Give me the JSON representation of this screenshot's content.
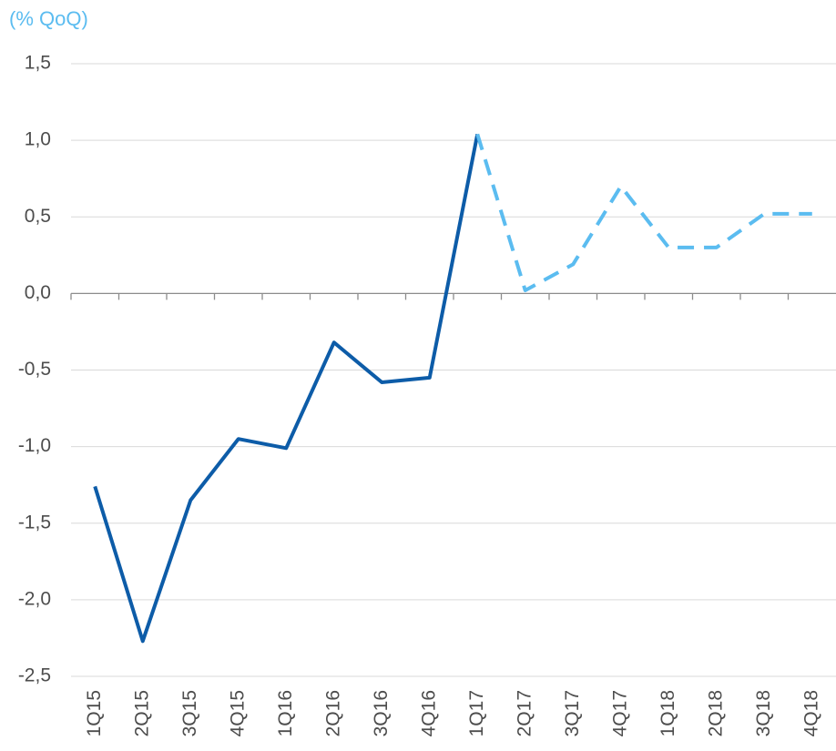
{
  "chart_data": {
    "type": "line",
    "subtitle": "(% QoQ)",
    "categories": [
      "1Q15",
      "2Q15",
      "3Q15",
      "4Q15",
      "1Q16",
      "2Q16",
      "3Q16",
      "4Q16",
      "1Q17",
      "2Q17",
      "3Q17",
      "4Q17",
      "1Q18",
      "2Q18",
      "3Q18",
      "4Q18"
    ],
    "series": [
      {
        "color": "#0d5ca8",
        "dashed": false,
        "values": [
          -1.26,
          -2.27,
          -1.35,
          -0.95,
          -1.01,
          -0.32,
          -0.58,
          -0.55,
          1.04,
          null,
          null,
          null,
          null,
          null,
          null,
          null
        ]
      },
      {
        "color": "#5bbcf0",
        "dashed": true,
        "values": [
          null,
          null,
          null,
          null,
          null,
          null,
          null,
          null,
          1.04,
          0.02,
          0.19,
          0.7,
          0.3,
          0.3,
          0.52,
          0.52
        ]
      }
    ],
    "ylim": [
      -2.5,
      1.5
    ],
    "yticks": [
      {
        "value": 1.5,
        "label": "1,5"
      },
      {
        "value": 1.0,
        "label": "1,0"
      },
      {
        "value": 0.5,
        "label": "0,5"
      },
      {
        "value": 0.0,
        "label": "0,0"
      },
      {
        "value": -0.5,
        "label": "-0,5"
      },
      {
        "value": -1.0,
        "label": "-1,0"
      },
      {
        "value": -1.5,
        "label": "-1,5"
      },
      {
        "value": -2.0,
        "label": "-2,0"
      },
      {
        "value": -2.5,
        "label": "-2,5"
      }
    ],
    "grid": true
  }
}
